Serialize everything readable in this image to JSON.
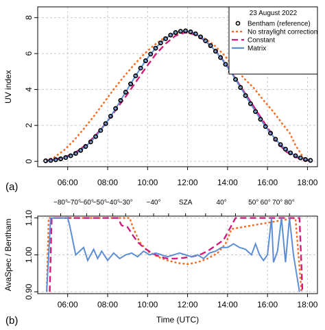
{
  "panel_labels": {
    "a": "(a)",
    "b": "(b)"
  },
  "chart_data": [
    {
      "type": "line",
      "panel": "a",
      "ylabel": "UV index",
      "xlim": [
        4.5,
        18.5
      ],
      "ylim": [
        -0.3,
        8.6
      ],
      "yticks": [
        0,
        2,
        4,
        6,
        8
      ],
      "xticks": [
        6,
        8,
        10,
        12,
        14,
        16,
        18
      ],
      "xtick_labels": [
        "06:00",
        "08:00",
        "10:00",
        "12:00",
        "14:00",
        "16:00",
        "18:00"
      ],
      "grid": true,
      "legend": {
        "placement": "top-right",
        "title": "23 August 2022",
        "entries": [
          {
            "name": "Bentham (reference)",
            "style": "circle-markers",
            "color": "#000000"
          },
          {
            "name": "No straylight correction",
            "style": "dotted",
            "color": "#f26b21"
          },
          {
            "name": "Constant",
            "style": "dashed",
            "color": "#cc1e7a"
          },
          {
            "name": "Matrix",
            "style": "solid",
            "color": "#5b8ed6"
          }
        ]
      },
      "series": [
        {
          "name": "Bentham (reference)",
          "color": "#000000",
          "x": [
            4.9,
            5.15,
            5.4,
            5.65,
            5.9,
            6.15,
            6.4,
            6.65,
            6.9,
            7.15,
            7.4,
            7.65,
            7.9,
            8.15,
            8.4,
            8.65,
            8.9,
            9.15,
            9.4,
            9.65,
            9.9,
            10.15,
            10.4,
            10.65,
            10.9,
            11.15,
            11.4,
            11.65,
            11.9,
            12.15,
            12.4,
            12.65,
            12.9,
            13.15,
            13.4,
            13.65,
            13.9,
            14.15,
            14.4,
            14.65,
            14.9,
            15.15,
            15.4,
            15.65,
            15.9,
            16.15,
            16.4,
            16.65,
            16.9,
            17.15,
            17.4,
            17.65,
            17.9,
            18.15
          ],
          "y": [
            0.03,
            0.05,
            0.09,
            0.14,
            0.21,
            0.31,
            0.44,
            0.61,
            0.83,
            1.08,
            1.38,
            1.72,
            2.1,
            2.51,
            2.94,
            3.39,
            3.85,
            4.31,
            4.76,
            5.19,
            5.6,
            5.97,
            6.3,
            6.59,
            6.83,
            7.03,
            7.17,
            7.24,
            7.26,
            7.21,
            7.1,
            6.93,
            6.71,
            6.44,
            6.13,
            5.78,
            5.4,
            4.99,
            4.56,
            4.11,
            3.66,
            3.21,
            2.77,
            2.34,
            1.94,
            1.57,
            1.23,
            0.93,
            0.68,
            0.47,
            0.31,
            0.19,
            0.1,
            0.05
          ]
        },
        {
          "name": "No straylight correction",
          "color": "#f26b21",
          "x": [
            4.9,
            5.3,
            5.8,
            6.3,
            6.8,
            7.3,
            7.8,
            8.3,
            8.8,
            9.3,
            9.8,
            10.3,
            10.8,
            11.3,
            11.8,
            12.3,
            12.8,
            13.3,
            13.8,
            14.3,
            14.8,
            15.3,
            15.8,
            16.3,
            16.8,
            17.1,
            17.4,
            17.8,
            18.1
          ],
          "y": [
            0.05,
            0.2,
            0.6,
            1.15,
            1.8,
            2.5,
            3.25,
            4.0,
            4.7,
            5.35,
            5.95,
            6.45,
            6.85,
            7.1,
            7.18,
            7.1,
            6.88,
            6.5,
            5.95,
            5.3,
            4.65,
            4.1,
            3.4,
            2.75,
            2.0,
            1.6,
            0.9,
            0.2,
            0.05
          ]
        },
        {
          "name": "Constant",
          "color": "#cc1e7a",
          "x": [
            4.9,
            5.4,
            5.9,
            6.4,
            6.9,
            7.4,
            7.9,
            8.4,
            8.9,
            9.4,
            9.9,
            10.4,
            10.9,
            11.4,
            11.9,
            12.4,
            12.9,
            13.4,
            13.9,
            14.4,
            14.9,
            15.4,
            15.9,
            16.4,
            16.9,
            17.4,
            17.8,
            18.1
          ],
          "y": [
            0.03,
            0.12,
            0.26,
            0.5,
            0.9,
            1.45,
            2.1,
            2.85,
            3.6,
            4.4,
            5.2,
            5.95,
            6.55,
            7.0,
            7.18,
            7.05,
            6.7,
            6.15,
            5.45,
            4.6,
            3.75,
            2.9,
            2.05,
            1.2,
            0.55,
            0.25,
            0.08,
            0.03
          ]
        },
        {
          "name": "Matrix",
          "color": "#5b8ed6",
          "x": [
            4.9,
            5.15,
            5.4,
            5.65,
            5.9,
            6.15,
            6.4,
            6.65,
            6.9,
            7.15,
            7.4,
            7.65,
            7.9,
            8.15,
            8.4,
            8.65,
            8.9,
            9.15,
            9.4,
            9.65,
            9.9,
            10.15,
            10.4,
            10.65,
            10.9,
            11.15,
            11.4,
            11.65,
            11.9,
            12.15,
            12.4,
            12.65,
            12.9,
            13.15,
            13.4,
            13.65,
            13.9,
            14.15,
            14.4,
            14.65,
            14.9,
            15.15,
            15.4,
            15.65,
            15.9,
            16.15,
            16.4,
            16.65,
            16.9,
            17.15,
            17.4,
            17.65,
            17.9,
            18.15
          ],
          "y": [
            0.03,
            0.05,
            0.09,
            0.14,
            0.21,
            0.31,
            0.44,
            0.61,
            0.83,
            1.08,
            1.38,
            1.72,
            2.1,
            2.51,
            2.94,
            3.39,
            3.85,
            4.31,
            4.76,
            5.19,
            5.6,
            5.97,
            6.3,
            6.59,
            6.83,
            7.03,
            7.17,
            7.24,
            7.26,
            7.21,
            7.1,
            6.93,
            6.71,
            6.44,
            6.13,
            5.78,
            5.4,
            4.99,
            4.56,
            4.11,
            3.66,
            3.21,
            2.77,
            2.34,
            1.94,
            1.57,
            1.23,
            0.93,
            0.68,
            0.47,
            0.31,
            0.19,
            0.1,
            0.05
          ]
        }
      ]
    },
    {
      "type": "line",
      "panel": "b",
      "ylabel": "AvaSpec / Bentham",
      "xlabel": "Time (UTC)",
      "xlim": [
        4.5,
        18.5
      ],
      "ylim": [
        0.895,
        1.105
      ],
      "yticks": [
        0.9,
        1.0,
        1.1
      ],
      "ytick_labels": [
        "0.90",
        "1.00",
        "1.10"
      ],
      "xticks": [
        6,
        8,
        10,
        12,
        14,
        16,
        18
      ],
      "xtick_labels": [
        "06:00",
        "08:00",
        "10:00",
        "12:00",
        "14:00",
        "16:00",
        "18:00"
      ],
      "top_axis": {
        "label": "SZA",
        "ticks": [
          {
            "x": 5.65,
            "label": "−80°"
          },
          {
            "x": 6.3,
            "label": "−70°"
          },
          {
            "x": 6.95,
            "label": "−60°"
          },
          {
            "x": 7.6,
            "label": "−50°"
          },
          {
            "x": 8.25,
            "label": "−40°"
          },
          {
            "x": 8.9,
            "label": "−30°"
          },
          {
            "x": 9.6,
            "label": ""
          },
          {
            "x": 10.3,
            "label": "−40°"
          },
          {
            "x": 11.05,
            "label": ""
          },
          {
            "x": 11.9,
            "label": "SZA"
          },
          {
            "x": 12.9,
            "label": ""
          },
          {
            "x": 13.7,
            "label": "40°"
          },
          {
            "x": 14.4,
            "label": ""
          },
          {
            "x": 15.3,
            "label": "50°"
          },
          {
            "x": 15.9,
            "label": "60°"
          },
          {
            "x": 16.5,
            "label": "70°"
          },
          {
            "x": 17.1,
            "label": "80°"
          }
        ]
      },
      "grid": true,
      "series": [
        {
          "name": "No straylight correction",
          "color": "#f26b21",
          "x": [
            4.95,
            5.05,
            9.1,
            9.3,
            9.6,
            10.0,
            10.5,
            11.0,
            11.5,
            12.0,
            12.5,
            13.0,
            13.5,
            13.9,
            14.2,
            17.4,
            17.55,
            17.7
          ],
          "y": [
            0.9,
            1.1,
            1.1,
            1.07,
            1.035,
            1.01,
            0.995,
            0.985,
            0.978,
            0.975,
            0.98,
            0.99,
            1.005,
            1.03,
            1.07,
            1.1,
            1.0,
            0.9
          ]
        },
        {
          "name": "Constant",
          "color": "#cc1e7a",
          "x": [
            5.1,
            5.2,
            8.5,
            8.7,
            9.0,
            9.3,
            9.5,
            9.8,
            10.2,
            10.6,
            11.0,
            11.4,
            11.8,
            12.2,
            12.6,
            13.0,
            13.4,
            13.8,
            14.2,
            14.4,
            17.6,
            17.75
          ],
          "y": [
            0.9,
            1.1,
            1.1,
            1.08,
            1.075,
            1.05,
            1.035,
            1.02,
            1.005,
            0.995,
            0.99,
            0.99,
            0.992,
            0.995,
            1.0,
            1.01,
            1.025,
            1.04,
            1.08,
            1.1,
            1.1,
            0.9
          ]
        },
        {
          "name": "Matrix",
          "color": "#5b8ed6",
          "x": [
            4.95,
            5.05,
            5.15,
            6.0,
            6.1,
            6.4,
            6.8,
            7.0,
            7.3,
            7.5,
            7.7,
            8.0,
            8.3,
            8.6,
            8.9,
            9.2,
            9.5,
            9.8,
            10.1,
            10.4,
            10.7,
            11.0,
            11.3,
            11.6,
            11.9,
            12.2,
            12.5,
            12.8,
            13.1,
            13.4,
            13.7,
            14.0,
            14.3,
            14.6,
            14.9,
            15.2,
            15.4,
            15.6,
            15.8,
            16.0,
            16.2,
            16.3,
            16.5,
            16.7,
            16.9,
            17.1,
            17.3,
            17.45,
            17.6
          ],
          "y": [
            0.9,
            1.0,
            1.1,
            1.1,
            1.08,
            1.0,
            1.02,
            0.985,
            1.015,
            0.99,
            1.01,
            0.985,
            1.005,
            0.99,
            1.0,
            1.005,
            0.995,
            1.01,
            1.0,
            1.005,
            1.0,
            0.995,
            1.0,
            1.005,
            1.0,
            0.995,
            1.0,
            0.99,
            1.005,
            1.01,
            1.02,
            1.02,
            1.03,
            1.02,
            1.015,
            1.0,
            1.03,
            1.0,
            0.985,
            1.0,
            1.1,
            0.98,
            1.01,
            1.1,
            0.98,
            1.1,
            1.0,
            0.95,
            0.9
          ]
        }
      ]
    }
  ]
}
